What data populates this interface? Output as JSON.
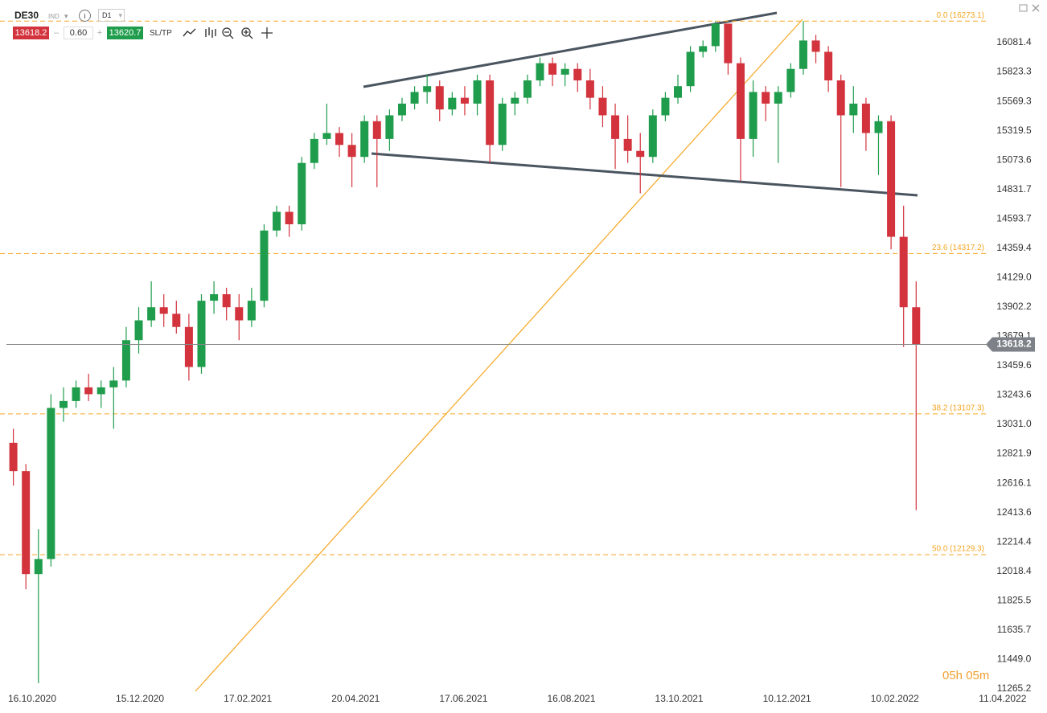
{
  "toolbar": {
    "symbol": "DE30",
    "market": "IND",
    "interval": "D1",
    "sell": 13618.2,
    "spread": "0.60",
    "buy": 13620.7,
    "sltp": "SL/TP"
  },
  "timer": "05h 05m",
  "chart_data": {
    "type": "candlestick",
    "x": [
      2.5,
      7.5,
      12.5,
      17.5,
      22.5,
      27.5,
      32.5,
      37.5,
      42.5,
      47.5,
      52.5,
      57.5,
      62.5,
      67.5,
      72.5,
      77.5,
      82.5,
      87.5,
      92.5,
      97.5,
      102.5,
      107.5,
      112.5,
      117.5,
      122.5,
      127.5,
      132.5,
      137.5,
      142.5,
      147.5,
      152.5,
      157.5,
      162.5,
      167.5,
      172.5,
      177.5,
      182.5,
      187.5,
      192.5,
      197.5,
      202.5,
      207.5,
      212.5,
      217.5,
      222.5,
      227.5,
      232.5,
      237.5,
      242.5,
      247.5,
      252.5,
      257.5,
      262.5,
      267.5,
      272.5,
      277.5,
      282.5,
      287.5,
      292.5,
      297.5,
      302.5,
      307.5,
      312.5,
      317.5,
      322.5,
      327.5,
      332.5,
      337.5,
      342.5,
      347.5,
      352.5,
      357.5,
      362.5
    ],
    "open": [
      12900,
      12700,
      12000,
      12100,
      13150,
      13200,
      13300,
      13250,
      13300,
      13350,
      13650,
      13800,
      13900,
      13850,
      13750,
      13450,
      13950,
      14000,
      13900,
      13800,
      13950,
      14500,
      14650,
      14550,
      15050,
      15250,
      15300,
      15200,
      15100,
      15400,
      15250,
      15450,
      15550,
      15650,
      15700,
      15500,
      15600,
      15550,
      15750,
      15200,
      15550,
      15600,
      15750,
      15900,
      15800,
      15850,
      15750,
      15600,
      15450,
      15250,
      15150,
      15100,
      15450,
      15600,
      15700,
      16000,
      16050,
      16250,
      15900,
      15250,
      15650,
      15550,
      15650,
      15850,
      16100,
      16000,
      15750,
      15450,
      15550,
      15300,
      15400,
      14450,
      13900
    ],
    "high": [
      13000,
      12750,
      12300,
      13250,
      13300,
      13350,
      13400,
      13350,
      13450,
      13750,
      13900,
      14100,
      14000,
      13950,
      13850,
      14000,
      14100,
      14050,
      14000,
      14050,
      14550,
      14700,
      14700,
      15100,
      15300,
      15550,
      15350,
      15300,
      15450,
      15450,
      15500,
      15600,
      15700,
      15800,
      15750,
      15650,
      15700,
      15800,
      15800,
      15600,
      15650,
      15800,
      15950,
      15950,
      15900,
      15900,
      15850,
      15700,
      15550,
      15450,
      15300,
      15500,
      15650,
      15800,
      16050,
      16100,
      16273.1,
      16250,
      15950,
      15750,
      15700,
      15700,
      15900,
      16273.1,
      16150,
      16050,
      15800,
      15700,
      15600,
      15450,
      15450,
      14700,
      14100
    ],
    "low": [
      12600,
      11900,
      11300,
      12050,
      13050,
      13150,
      13200,
      13150,
      13000,
      13300,
      13550,
      13750,
      13750,
      13700,
      13350,
      13400,
      13850,
      13800,
      13650,
      13750,
      13900,
      14450,
      14450,
      14500,
      15000,
      15200,
      15100,
      14850,
      15050,
      14850,
      15150,
      15400,
      15500,
      15550,
      15400,
      15450,
      15450,
      15450,
      15050,
      15150,
      15450,
      15550,
      15700,
      15700,
      15700,
      15650,
      15500,
      15350,
      15000,
      15050,
      14800,
      15050,
      15400,
      15550,
      15650,
      15950,
      16000,
      15800,
      14900,
      15100,
      15400,
      15050,
      15600,
      15800,
      15900,
      15650,
      14850,
      15300,
      15150,
      14950,
      14350,
      13600,
      12430
    ],
    "close": [
      12700,
      12000,
      12100,
      13150,
      13200,
      13300,
      13250,
      13300,
      13350,
      13650,
      13800,
      13900,
      13850,
      13750,
      13450,
      13950,
      14000,
      13900,
      13800,
      13950,
      14500,
      14650,
      14550,
      15050,
      15250,
      15300,
      15200,
      15100,
      15400,
      15250,
      15450,
      15550,
      15650,
      15700,
      15500,
      15600,
      15550,
      15750,
      15200,
      15550,
      15600,
      15750,
      15900,
      15800,
      15850,
      15750,
      15600,
      15450,
      15250,
      15150,
      15100,
      15450,
      15600,
      15700,
      16000,
      16050,
      16250,
      15900,
      15250,
      15650,
      15550,
      15650,
      15850,
      16100,
      16000,
      15750,
      15450,
      15550,
      15300,
      15400,
      14450,
      13900,
      13618.2
    ],
    "up_color": "#1f9d4c",
    "down_color": "#d3333d",
    "last_price": 13618.2,
    "fib_levels": [
      {
        "price": 16273.1,
        "label": "0.0 (16273.1)"
      },
      {
        "price": 14317.2,
        "label": "23.6 (14317.2)"
      },
      {
        "price": 13107.3,
        "label": "38.2 (13107.3)"
      },
      {
        "price": 12129.3,
        "label": "50.0 (12129.3)"
      }
    ],
    "fib_color": "#f5a623",
    "log_scale": true,
    "ylim": [
      11200,
      16405
    ],
    "yticks": [
      16081.4,
      15823.3,
      15569.3,
      15319.5,
      15073.6,
      14831.7,
      14593.7,
      14359.4,
      {
        "value": 14129,
        "label": "14129.0"
      },
      13902.2,
      13679.1,
      13459.6,
      13243.6,
      {
        "value": 13031,
        "label": "13031.0"
      },
      12821.9,
      12616.1,
      12413.6,
      12214.4,
      12018.4,
      11825.5,
      11635.7,
      {
        "value": 11449,
        "label": "11449.0"
      },
      11265.2
    ],
    "xlim": [
      0,
      415
    ],
    "xticks": [
      {
        "value": 10,
        "label": "16.10.2020"
      },
      {
        "value": 53,
        "label": "15.12.2020"
      },
      {
        "value": 96,
        "label": "17.02.2021"
      },
      {
        "value": 139,
        "label": "20.04.2021"
      },
      {
        "value": 182,
        "label": "17.06.2021"
      },
      {
        "value": 225,
        "label": "16.08.2021"
      },
      {
        "value": 268,
        "label": "13.10.2021"
      },
      {
        "value": 311,
        "label": "10.12.2021"
      },
      {
        "value": 354,
        "label": "10.02.2022"
      },
      {
        "value": 397,
        "label": "11.04.2022"
      }
    ],
    "grid": false
  }
}
